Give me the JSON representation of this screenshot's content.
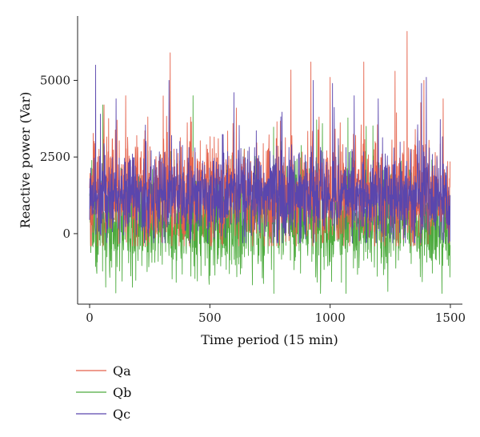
{
  "chart_data": {
    "type": "line",
    "xlabel": "Time period (15 min)",
    "ylabel": "Reactive power (Var)",
    "xlim": [
      -50,
      1550
    ],
    "ylim": [
      -2300,
      7100
    ],
    "xticks": [
      0,
      500,
      1000,
      1500
    ],
    "yticks": [
      0,
      2500,
      5000
    ],
    "n_points": 1500,
    "grid": false,
    "legend_position": "bottom-left",
    "series": [
      {
        "name": "Qa",
        "color": "#e5624b",
        "mean": 1300,
        "noise_sd": 850,
        "min": -400,
        "max": 6600,
        "peaks": [
          [
            60,
            4200
          ],
          [
            150,
            4500
          ],
          [
            335,
            5900
          ],
          [
            420,
            3800
          ],
          [
            610,
            4100
          ],
          [
            920,
            5600
          ],
          [
            1000,
            5100
          ],
          [
            1140,
            5600
          ],
          [
            1270,
            5300
          ],
          [
            1320,
            6600
          ],
          [
            1390,
            5000
          ],
          [
            1470,
            4400
          ]
        ]
      },
      {
        "name": "Qb",
        "color": "#4dab3e",
        "mean": 400,
        "noise_sd": 850,
        "min": -1950,
        "max": 4600,
        "peaks": [
          [
            55,
            4200
          ],
          [
            430,
            4500
          ],
          [
            600,
            3300
          ],
          [
            1150,
            3500
          ]
        ]
      },
      {
        "name": "Qc",
        "color": "#5a46ad",
        "mean": 1250,
        "noise_sd": 700,
        "min": -300,
        "max": 5500,
        "peaks": [
          [
            25,
            5500
          ],
          [
            45,
            3900
          ],
          [
            110,
            4400
          ],
          [
            330,
            5000
          ],
          [
            600,
            4600
          ],
          [
            930,
            5000
          ],
          [
            1010,
            4900
          ],
          [
            1100,
            4500
          ],
          [
            1200,
            4400
          ],
          [
            1380,
            4900
          ],
          [
            1400,
            5100
          ]
        ]
      }
    ]
  }
}
